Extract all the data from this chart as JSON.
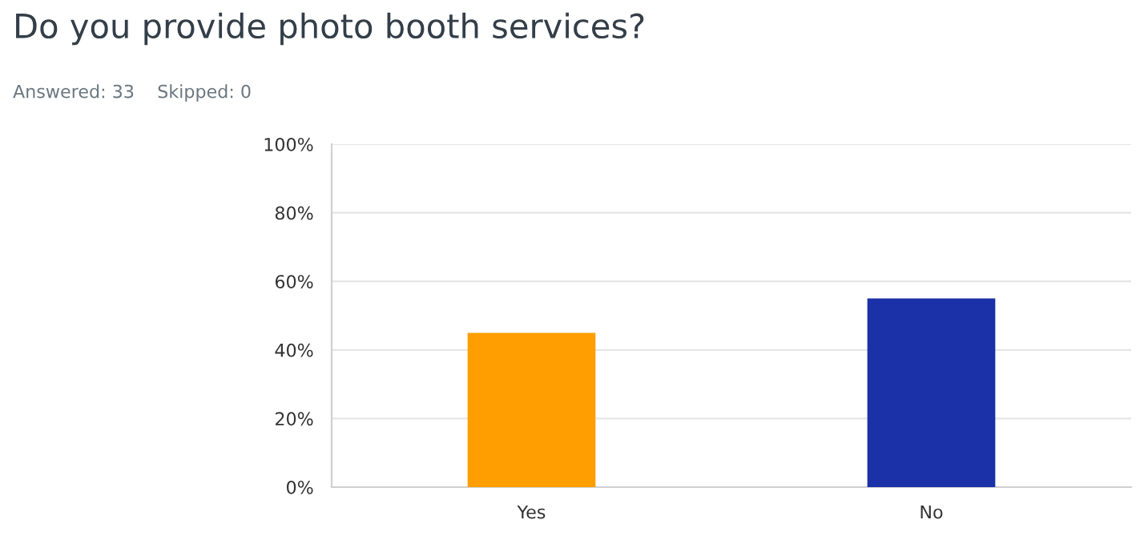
{
  "chart_data": {
    "type": "bar",
    "title": "Do you provide photo booth services?",
    "subtitle": "Answered: 33    Skipped: 0",
    "categories": [
      "Yes",
      "No"
    ],
    "values": [
      45,
      55
    ],
    "colors": [
      "#ff9e00",
      "#1a31a8"
    ],
    "ylim": [
      0,
      100
    ],
    "yticks": [
      {
        "value": 0,
        "label": "0%"
      },
      {
        "value": 20,
        "label": "20%"
      },
      {
        "value": 40,
        "label": "40%"
      },
      {
        "value": 60,
        "label": "60%"
      },
      {
        "value": 80,
        "label": "80%"
      },
      {
        "value": 100,
        "label": "100%"
      }
    ],
    "grid": "y"
  }
}
